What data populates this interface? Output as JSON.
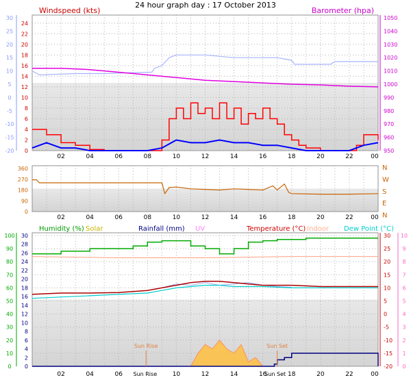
{
  "chart_data": [
    {
      "type": "line",
      "title": "24 hour graph day : 17 October 2013",
      "left_label": "Windspeed (kts)",
      "right_label": "Barometer (hpa)",
      "x_ticks": [
        "02",
        "04",
        "06",
        "08",
        "10",
        "12",
        "14",
        "16",
        "18",
        "20",
        "22",
        "00"
      ],
      "ylim_wind": [
        0,
        25
      ],
      "yticks_wind": [
        0,
        2,
        4,
        6,
        8,
        10,
        12,
        14,
        16,
        18,
        20,
        22,
        24
      ],
      "ylim_temp_left": [
        -20,
        30
      ],
      "yticks_temp_left": [
        30,
        25,
        20,
        15,
        10,
        5,
        0,
        -5,
        -10,
        -15,
        -20
      ],
      "ylim_baro": [
        950,
        1050
      ],
      "yticks_baro": [
        950,
        960,
        970,
        980,
        990,
        1000,
        1010,
        1020,
        1030,
        1040,
        1050
      ],
      "series": [
        {
          "name": "wind_gust",
          "color": "#ff0000",
          "x": [
            0,
            1,
            2,
            3,
            4,
            5,
            6,
            7,
            8,
            9,
            9.5,
            10,
            10.5,
            11,
            11.5,
            12,
            12.5,
            13,
            13.5,
            14,
            14.5,
            15,
            15.5,
            16,
            16.5,
            17,
            17.5,
            18,
            18.5,
            19,
            20,
            21,
            22,
            22.5,
            23,
            23.5,
            24
          ],
          "y": [
            4,
            3,
            1.5,
            1,
            0.2,
            0,
            0,
            0,
            0,
            2,
            6,
            8,
            6,
            9,
            7,
            8,
            6,
            9,
            6,
            8,
            5,
            7,
            6,
            8,
            6,
            5,
            3,
            2,
            1,
            0.5,
            0,
            0,
            0,
            1,
            3,
            3,
            2
          ]
        },
        {
          "name": "wind_avg",
          "color": "#0000ff",
          "x": [
            0,
            1,
            2,
            3,
            4,
            5,
            6,
            7,
            8,
            9,
            10,
            11,
            12,
            13,
            14,
            15,
            16,
            17,
            18,
            19,
            20,
            21,
            22,
            23,
            24
          ],
          "y": [
            0.5,
            1.5,
            0.5,
            0.5,
            0,
            0,
            0,
            0,
            0,
            0.5,
            2,
            1.5,
            1.5,
            2,
            1.5,
            1.5,
            1,
            1,
            0.5,
            0,
            0,
            0,
            0,
            1,
            1.5
          ]
        },
        {
          "name": "temp_outside",
          "color": "#a8b4ff",
          "x": [
            0,
            0.5,
            3,
            5,
            8,
            8.3,
            8.5,
            9,
            9.5,
            10,
            12,
            14,
            16,
            17,
            18,
            18.2,
            20.7,
            21,
            23.9,
            24
          ],
          "y": [
            10,
            8.5,
            9,
            9,
            9.5,
            9.5,
            11,
            12,
            15,
            16,
            16,
            15,
            15,
            15,
            14,
            12.5,
            12.5,
            13.5,
            13.5,
            13.5
          ]
        },
        {
          "name": "barometer",
          "color": "#e000e0",
          "x": [
            0,
            2,
            4,
            6,
            8,
            10,
            12,
            14,
            16,
            18,
            20,
            22,
            24
          ],
          "y": [
            1012,
            1012,
            1011,
            1009,
            1007,
            1005,
            1003,
            1002,
            1001,
            1000,
            999.5,
            998.5,
            998
          ]
        }
      ]
    },
    {
      "type": "line",
      "left_ticks": [
        "360",
        "270",
        "180",
        "90",
        "0"
      ],
      "right_compass": [
        "N",
        "W",
        "S",
        "E",
        "N"
      ],
      "ylim": [
        0,
        360
      ],
      "x_ticks": [
        "02",
        "04",
        "06",
        "08",
        "10",
        "12",
        "14",
        "16",
        "18",
        "20",
        "22",
        "00"
      ],
      "series": [
        {
          "name": "wind_direction",
          "color": "#c86400",
          "x": [
            0,
            0.3,
            0.5,
            3,
            5,
            7,
            9,
            9.2,
            9.5,
            10,
            11,
            12,
            13,
            14,
            15,
            16,
            16.7,
            17,
            17.5,
            17.8,
            18,
            20,
            22,
            24
          ],
          "y": [
            265,
            265,
            240,
            240,
            240,
            240,
            240,
            150,
            200,
            205,
            190,
            185,
            180,
            190,
            185,
            180,
            215,
            180,
            230,
            160,
            150,
            145,
            145,
            150
          ]
        }
      ]
    },
    {
      "type": "line",
      "legend": [
        "Humidity (%)",
        "Solar",
        "Rainfall (mm)",
        "UV",
        "Temperature (°C)",
        "Indoor",
        "Dew Point (°C)"
      ],
      "legend_colors": [
        "#009900",
        "#c8b400",
        "#000080",
        "#ff88ff",
        "#cc0000",
        "#ffb090",
        "#00cccc"
      ],
      "yticks_humidity": [
        0,
        10,
        20,
        30,
        40,
        50,
        60,
        70,
        80,
        90,
        100
      ],
      "yticks_rain": [
        0,
        2,
        4,
        6,
        8,
        10,
        12,
        14,
        16,
        18,
        20,
        22,
        24,
        26,
        28,
        30
      ],
      "yticks_temp": [
        30,
        25,
        20,
        15,
        10,
        5,
        0,
        -5,
        -10,
        -15,
        -20
      ],
      "yticks_uv": [
        10,
        9,
        8,
        7,
        6,
        5,
        4,
        3,
        2,
        1,
        0
      ],
      "x_ticks": [
        "02",
        "04",
        "06",
        "08",
        "10",
        "12",
        "14",
        "16",
        "18",
        "20",
        "22",
        "00"
      ],
      "annotations": [
        "Sun Rise",
        "Sun Set"
      ],
      "x_tick_overrides": {
        "sun_rise": "Sun Rise",
        "sun_set": "Sun Set"
      },
      "series": [
        {
          "name": "Humidity (%)",
          "color": "#00aa00",
          "x": [
            0,
            2,
            4,
            6,
            7,
            8,
            9,
            10,
            11,
            12,
            13,
            14,
            15,
            16,
            17,
            18,
            19,
            20,
            22,
            24
          ],
          "y": [
            86,
            88,
            90,
            90,
            92,
            95,
            96,
            96,
            92,
            90,
            86,
            90,
            95,
            96,
            97,
            97,
            98,
            98,
            98,
            98
          ]
        },
        {
          "name": "Indoor",
          "color": "#ffa080",
          "x": [
            0,
            6,
            12,
            18,
            24
          ],
          "y": [
            22,
            21.5,
            21.5,
            22,
            22
          ]
        },
        {
          "name": "Temperature (°C)",
          "color": "#aa0000",
          "x": [
            0,
            2,
            4,
            6,
            8,
            9,
            10,
            11,
            12,
            13,
            14,
            15,
            16,
            18,
            20,
            22,
            24
          ],
          "y": [
            7.5,
            8,
            8,
            8.2,
            9,
            10,
            11,
            12,
            12.5,
            12.5,
            12,
            11.5,
            11,
            11,
            10.5,
            10.5,
            10.5
          ]
        },
        {
          "name": "Dew Point (°C)",
          "color": "#00cccc",
          "x": [
            0,
            2,
            4,
            6,
            8,
            9,
            10,
            11,
            12,
            13,
            14,
            15,
            16,
            18,
            20,
            22,
            24
          ],
          "y": [
            6,
            6.5,
            7,
            7.5,
            8,
            9,
            10,
            10.5,
            11,
            11,
            10.5,
            10.5,
            10.5,
            10,
            10,
            10,
            10
          ]
        },
        {
          "name": "temp_variation",
          "color": "#9aaaf0",
          "x": [
            9,
            10,
            11,
            12,
            13,
            14,
            15,
            16,
            17,
            18
          ],
          "y": [
            10,
            11.5,
            11,
            12,
            11,
            11.5,
            12,
            11,
            10.5,
            10.2
          ]
        },
        {
          "name": "Solar",
          "color": "#ffb000",
          "x": [
            11,
            11.5,
            12,
            12.5,
            13,
            13.5,
            14,
            14.5,
            15,
            15.5,
            16
          ],
          "y": [
            0,
            3,
            5,
            4,
            6,
            4,
            3,
            5,
            1,
            2,
            0
          ]
        },
        {
          "name": "Rainfall (mm)",
          "color": "#000080",
          "x": [
            0,
            16,
            16.8,
            17,
            17.5,
            18,
            19,
            20,
            21,
            22,
            23,
            23.9,
            24
          ],
          "y": [
            0,
            0,
            0.5,
            1.5,
            2,
            3,
            3,
            3,
            3,
            3,
            3,
            3,
            0
          ]
        }
      ]
    }
  ]
}
